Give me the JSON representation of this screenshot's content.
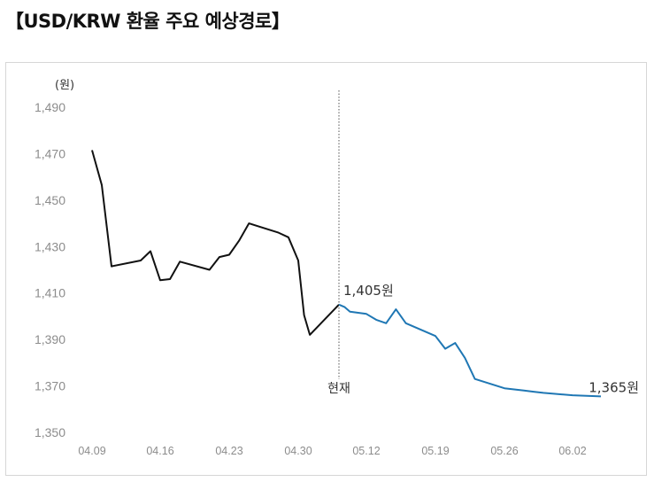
{
  "title": "【USD/KRW 환율 주요 예상경로】",
  "chart_data": {
    "type": "line",
    "unit_label": "(원)",
    "ylim": [
      1350,
      1490
    ],
    "y_ticks": [
      "1,350",
      "1,370",
      "1,390",
      "1,410",
      "1,430",
      "1,450",
      "1,470",
      "1,490"
    ],
    "x_ticks": [
      "04.09",
      "04.16",
      "04.23",
      "04.30",
      "05.12",
      "05.19",
      "05.26",
      "06.02"
    ],
    "divider_label": "현재",
    "grid": false,
    "series": [
      {
        "color": "#111111",
        "points": [
          {
            "x": "04.09",
            "y": 1471.5
          },
          {
            "x": "04.10",
            "y": 1456.5
          },
          {
            "x": "04.11",
            "y": 1421.5
          },
          {
            "x": "04.14",
            "y": 1424
          },
          {
            "x": "04.15",
            "y": 1428
          },
          {
            "x": "04.16",
            "y": 1415.5
          },
          {
            "x": "04.17",
            "y": 1416
          },
          {
            "x": "04.18",
            "y": 1423.5
          },
          {
            "x": "04.21",
            "y": 1420
          },
          {
            "x": "04.22",
            "y": 1425.5
          },
          {
            "x": "04.23",
            "y": 1426.5
          },
          {
            "x": "04.24",
            "y": 1432.5
          },
          {
            "x": "04.25",
            "y": 1440
          },
          {
            "x": "04.28",
            "y": 1436
          },
          {
            "x": "04.29",
            "y": 1434
          },
          {
            "x": "04.30",
            "y": 1424
          },
          {
            "x": "05.01",
            "y": 1400.5
          },
          {
            "x": "05.02",
            "y": 1392
          },
          {
            "x": "05.07",
            "y": 1405
          }
        ]
      },
      {
        "color": "#1f77b4",
        "points": [
          {
            "x": "05.07",
            "y": 1405
          },
          {
            "x": "05.08",
            "y": 1404
          },
          {
            "x": "05.09",
            "y": 1402
          },
          {
            "x": "05.12",
            "y": 1401
          },
          {
            "x": "05.13",
            "y": 1398.5
          },
          {
            "x": "05.14",
            "y": 1397
          },
          {
            "x": "05.15",
            "y": 1403
          },
          {
            "x": "05.16",
            "y": 1397
          },
          {
            "x": "05.19",
            "y": 1391.5
          },
          {
            "x": "05.20",
            "y": 1386
          },
          {
            "x": "05.21",
            "y": 1388.5
          },
          {
            "x": "05.22",
            "y": 1382
          },
          {
            "x": "05.23",
            "y": 1373
          },
          {
            "x": "05.26",
            "y": 1369
          },
          {
            "x": "05.27",
            "y": 1368.5
          },
          {
            "x": "05.28",
            "y": 1368
          },
          {
            "x": "05.29",
            "y": 1367.5
          },
          {
            "x": "05.30",
            "y": 1367
          },
          {
            "x": "06.02",
            "y": 1366
          },
          {
            "x": "06.03",
            "y": 1365.5
          }
        ]
      }
    ],
    "annotations": [
      {
        "text": "1,405원",
        "x": "05.07",
        "y": 1405
      },
      {
        "text": "1,365원",
        "x": "06.03",
        "y": 1365
      }
    ]
  }
}
